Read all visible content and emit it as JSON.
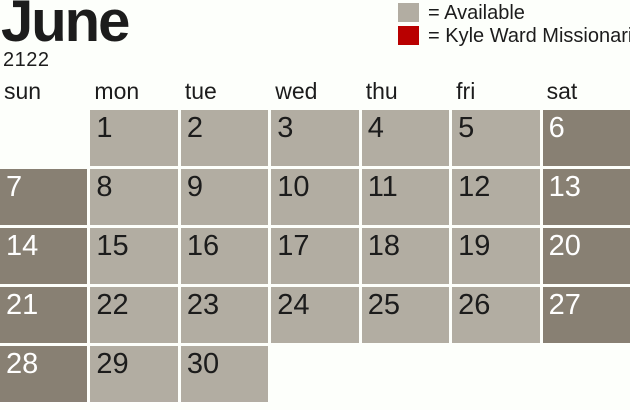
{
  "title": "June",
  "year": "2122",
  "legend": [
    {
      "icon": "available-swatch-icon",
      "swatch_color": "#b2ada2",
      "label": "= Available"
    },
    {
      "icon": "kyle-ward-swatch-icon",
      "swatch_color": "#b90000",
      "label": "= Kyle Ward Missionari"
    }
  ],
  "day_headers": [
    "sun",
    "mon",
    "tue",
    "wed",
    "thu",
    "fri",
    "sat"
  ],
  "weeks": [
    [
      null,
      1,
      2,
      3,
      4,
      5,
      6
    ],
    [
      7,
      8,
      9,
      10,
      11,
      12,
      13
    ],
    [
      14,
      15,
      16,
      17,
      18,
      19,
      20
    ],
    [
      21,
      22,
      23,
      24,
      25,
      26,
      27
    ],
    [
      28,
      29,
      30,
      null,
      null,
      null,
      null
    ]
  ],
  "colors": {
    "background": "#fdfffb",
    "cell_available": "#b2ada2",
    "cell_weekend": "#888073",
    "legend_red": "#b90000",
    "text_dark": "#1c1c1c",
    "text_light": "#ffffff"
  }
}
